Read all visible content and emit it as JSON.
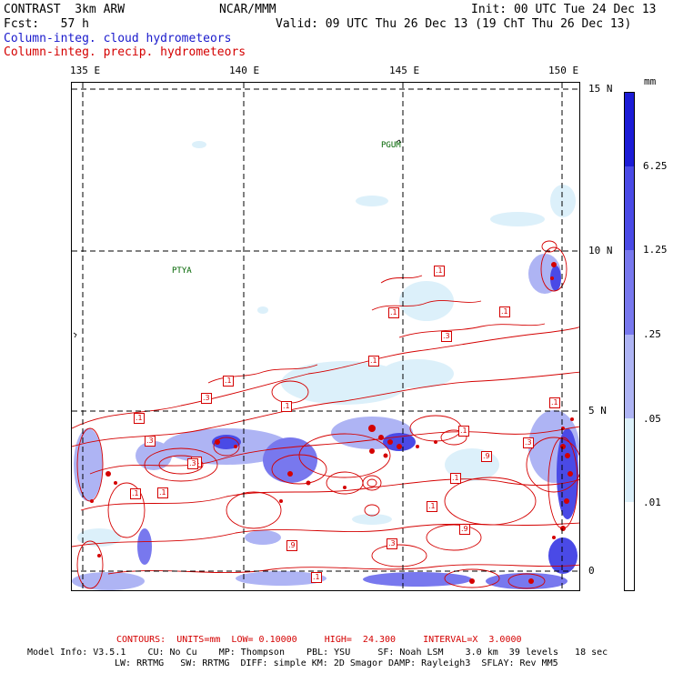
{
  "header": {
    "model": "CONTRAST  3km ARW",
    "org": "NCAR/MMM",
    "init": "Init: 00 UTC Tue 24 Dec 13",
    "fcst": "Fcst:   57 h",
    "valid": "Valid: 09 UTC Thu 26 Dec 13 (19 ChT Thu 26 Dec 13)",
    "field1": "Column-integ. cloud hydrometeors",
    "field2": "Column-integ. precip. hydrometeors"
  },
  "axes": {
    "lon_labels": [
      "135 E",
      "140 E",
      "145 E",
      "150 E"
    ],
    "lat_labels": [
      "15 N",
      "10 N",
      "5 N",
      "0"
    ]
  },
  "places": [
    "PGUM",
    "PTYA"
  ],
  "colorbar": {
    "unit": "mm",
    "labels": [
      "6.25",
      "1.25",
      ".25",
      ".05",
      ".01"
    ],
    "colors": [
      "#1c1cd6",
      "#4a4ae6",
      "#7878ee",
      "#aeb4f4",
      "#dcf0fa",
      "#ffffff"
    ]
  },
  "contour_labels": [
    ".1",
    ".1",
    ".1",
    ".3",
    ".1",
    ".1",
    ".3",
    ".1",
    ".1",
    ".1",
    ".3",
    ".1",
    ".9",
    ".1",
    ".1",
    ".1",
    ".9",
    ".3",
    ".1",
    ".1",
    ".3",
    ".3",
    ".9",
    ".1"
  ],
  "footer": {
    "contours": "CONTOURS:  UNITS=mm  LOW= 0.10000     HIGH=  24.300     INTERVAL=X  3.0000",
    "model_info_1": "Model Info: V3.5.1    CU: No Cu    MP: Thompson    PBL: YSU     SF: Noah LSM    3.0 km  39 levels   18 sec",
    "model_info_2": "LW: RRTMG   SW: RRTMG  DIFF: simple KM: 2D Smagor DAMP: Rayleigh3  SFLAY: Rev MM5"
  }
}
